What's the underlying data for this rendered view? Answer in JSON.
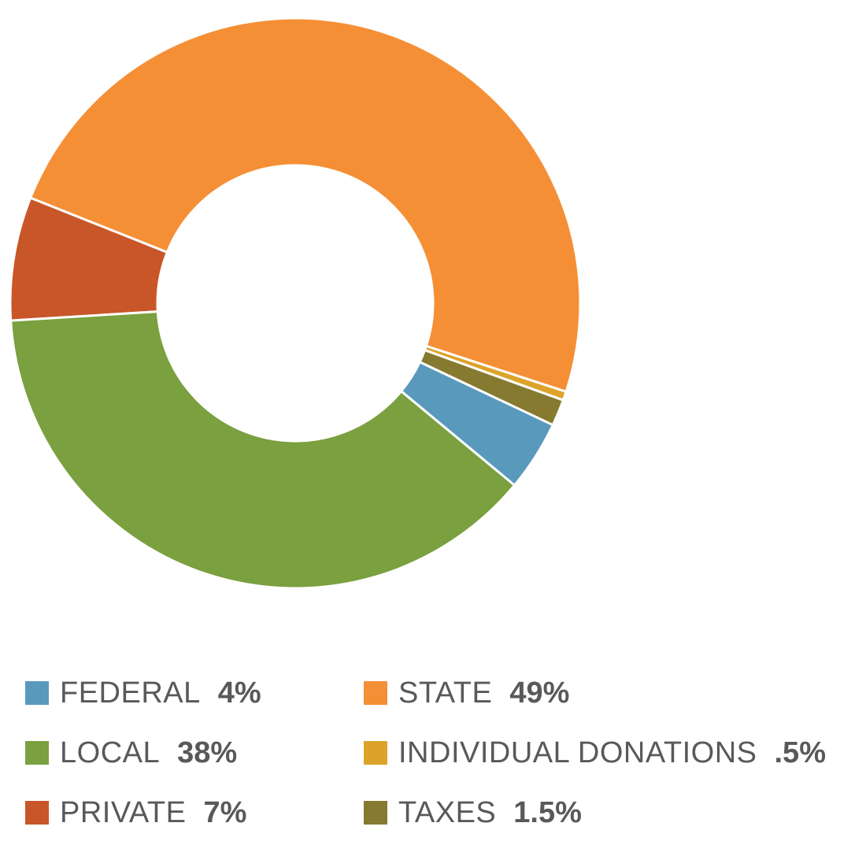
{
  "chart_data": {
    "type": "pie",
    "subtype": "donut",
    "title": "",
    "slices": [
      {
        "key": "federal",
        "label": "FEDERAL",
        "value": 4,
        "display": "4%",
        "color": "#5999bc"
      },
      {
        "key": "state",
        "label": "STATE",
        "value": 49,
        "display": "49%",
        "color": "#f58f36"
      },
      {
        "key": "local",
        "label": "LOCAL",
        "value": 38,
        "display": "38%",
        "color": "#7aa03f"
      },
      {
        "key": "donations",
        "label": "INDIVIDUAL DONATIONS",
        "value": 0.5,
        "display": ".5%",
        "color": "#dca32a"
      },
      {
        "key": "private",
        "label": "PRIVATE",
        "value": 7,
        "display": "7%",
        "color": "#c95628"
      },
      {
        "key": "taxes",
        "label": "TAXES",
        "value": 1.5,
        "display": "1.5%",
        "color": "#857a30"
      }
    ],
    "draw_order": [
      "private",
      "state",
      "donations",
      "taxes",
      "federal",
      "local"
    ],
    "legend_order": [
      "federal",
      "state",
      "local",
      "donations",
      "private",
      "taxes"
    ],
    "legend_position": "bottom"
  }
}
